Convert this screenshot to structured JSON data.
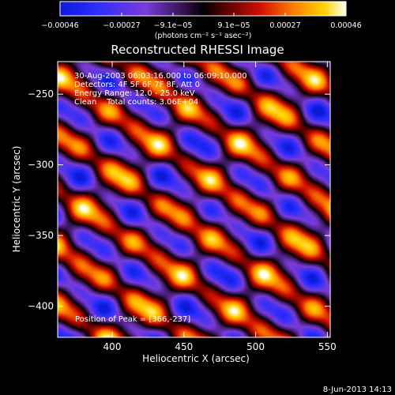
{
  "chart_data": {
    "type": "heatmap",
    "title": "Reconstructed RHESSI Image",
    "colorbar": {
      "ticks": [
        "−0.00046",
        "−0.00027",
        "−9.1e−05",
        "9.1e−05",
        "0.00027",
        "0.00046"
      ],
      "range": [
        -0.00046,
        0.00046
      ],
      "unit_label": "(photons cm⁻² s⁻¹ asec⁻²)"
    },
    "xlabel": "Heliocentric X (arcsec)",
    "ylabel": "Heliocentric Y (arcsec)",
    "xlim": [
      362,
      552
    ],
    "ylim": [
      -422,
      -227
    ],
    "xticks": [
      400,
      450,
      500,
      550
    ],
    "yticks": [
      -250,
      -300,
      -350,
      -400
    ],
    "annotations": [
      "30-Aug-2003 06:03:16.000 to 06:09:10.000",
      "Detectors: 4F 5F 6F 7F 8F, Att 0",
      "Energy Range: 12.0 - 25.0 keV",
      "Clean    Total counts: 3.06E+04"
    ],
    "peak_text": "Position of Peak = [366,-237]",
    "peak": [
      366,
      -237
    ],
    "grid": false
  },
  "footer": {
    "date": "8-Jun-2013 14:13"
  }
}
